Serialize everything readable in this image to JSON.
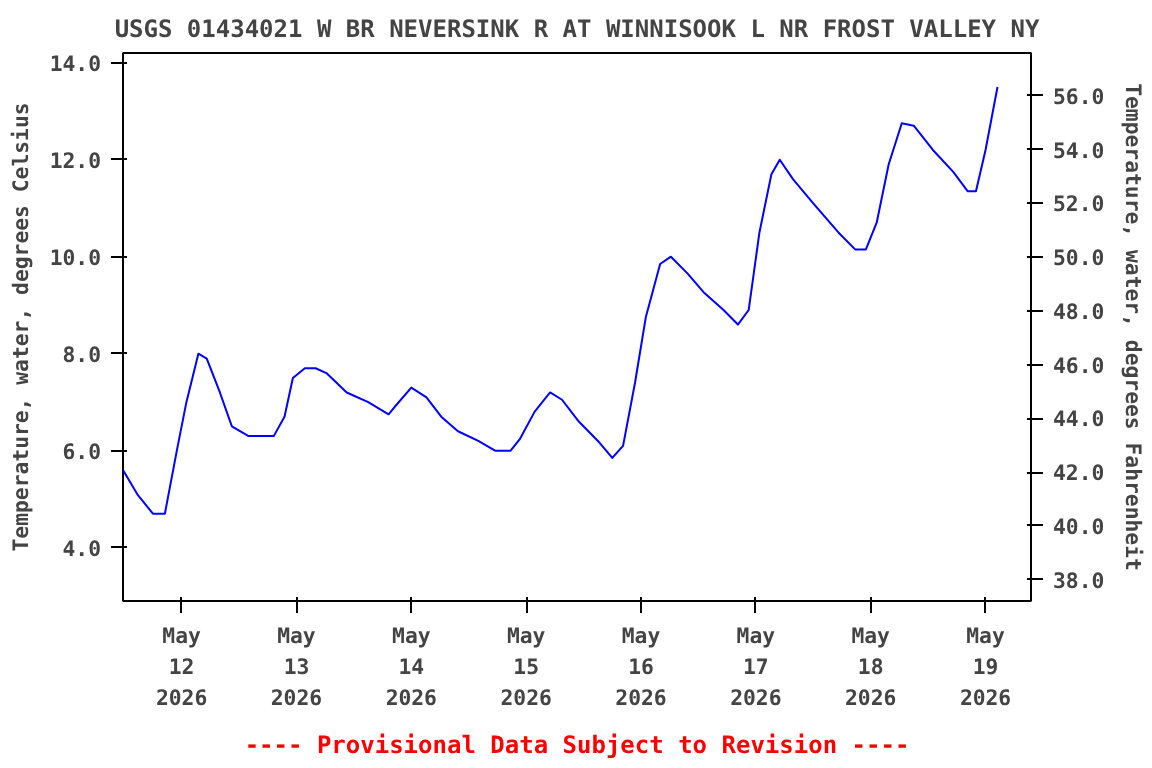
{
  "chart_data": {
    "type": "line",
    "title": "USGS 01434021 W BR NEVERSINK R AT WINNISOOK L NR FROST VALLEY NY",
    "ylabel": "Temperature, water, degrees Celsius",
    "y2label": "Temperature, water, degrees Fahrenheit",
    "annotations": [
      "---- Provisional Data Subject to Revision ----"
    ],
    "x": [
      "2026-05-11T11:45",
      "2026-05-11T14:45",
      "2026-05-11T18:00",
      "2026-05-11T20:30",
      "2026-05-11T23:00",
      "2026-05-12T01:00",
      "2026-05-12T03:30",
      "2026-05-12T05:15",
      "2026-05-12T08:00",
      "2026-05-12T10:30",
      "2026-05-12T14:00",
      "2026-05-12T19:15",
      "2026-05-12T21:30",
      "2026-05-12T23:15",
      "2026-05-13T01:45",
      "2026-05-13T04:00",
      "2026-05-13T06:15",
      "2026-05-13T10:30",
      "2026-05-13T15:00",
      "2026-05-13T19:15",
      "2026-05-13T20:30",
      "2026-05-14T00:00",
      "2026-05-14T03:10",
      "2026-05-14T06:15",
      "2026-05-14T09:45",
      "2026-05-14T14:00",
      "2026-05-14T17:30",
      "2026-05-14T20:45",
      "2026-05-14T22:45",
      "2026-05-15T01:45",
      "2026-05-15T05:00",
      "2026-05-15T07:30",
      "2026-05-15T11:00",
      "2026-05-15T15:00",
      "2026-05-15T18:00",
      "2026-05-15T20:15",
      "2026-05-15T22:45",
      "2026-05-16T01:00",
      "2026-05-16T04:00",
      "2026-05-16T06:15",
      "2026-05-16T09:45",
      "2026-05-16T13:15",
      "2026-05-16T17:15",
      "2026-05-16T20:15",
      "2026-05-16T22:30",
      "2026-05-17T00:45",
      "2026-05-17T03:15",
      "2026-05-17T05:00",
      "2026-05-17T07:45",
      "2026-05-17T12:00",
      "2026-05-17T17:15",
      "2026-05-17T20:45",
      "2026-05-17T23:00",
      "2026-05-18T01:15",
      "2026-05-18T03:45",
      "2026-05-18T06:30",
      "2026-05-18T09:00",
      "2026-05-18T13:00",
      "2026-05-18T17:15",
      "2026-05-18T20:15",
      "2026-05-18T22:00",
      "2026-05-19T00:00",
      "2026-05-19T02:30"
    ],
    "series": [
      {
        "color": "#0000ff",
        "values": [
          5.6,
          5.1,
          4.7,
          4.7,
          6.0,
          7.0,
          8.0,
          7.9,
          7.2,
          6.5,
          6.3,
          6.3,
          6.7,
          7.5,
          7.7,
          7.7,
          7.6,
          7.2,
          7.0,
          6.75,
          6.9,
          7.3,
          7.1,
          6.7,
          6.4,
          6.2,
          6.0,
          6.0,
          6.25,
          6.8,
          7.2,
          7.05,
          6.6,
          6.2,
          5.85,
          6.1,
          7.4,
          8.75,
          9.85,
          10.0,
          9.65,
          9.25,
          8.9,
          8.6,
          8.9,
          10.5,
          11.7,
          12.0,
          11.6,
          11.1,
          10.5,
          10.15,
          10.15,
          10.7,
          11.9,
          12.75,
          12.7,
          12.2,
          11.75,
          11.35,
          11.35,
          12.2,
          13.5
        ]
      }
    ],
    "xlim": [
      "2026-05-11T11:45",
      "2026-05-19T09:30"
    ],
    "ylim": [
      2.9,
      14.2
    ],
    "y2lim": [
      37.2,
      57.6
    ],
    "xticks": [
      {
        "value": "2026-05-12",
        "label": "May\n12\n2026"
      },
      {
        "value": "2026-05-13",
        "label": "May\n13\n2026"
      },
      {
        "value": "2026-05-14",
        "label": "May\n14\n2026"
      },
      {
        "value": "2026-05-15",
        "label": "May\n15\n2026"
      },
      {
        "value": "2026-05-16",
        "label": "May\n16\n2026"
      },
      {
        "value": "2026-05-17",
        "label": "May\n17\n2026"
      },
      {
        "value": "2026-05-18",
        "label": "May\n18\n2026"
      },
      {
        "value": "2026-05-19",
        "label": "May\n19\n2026"
      }
    ],
    "yticks": [
      {
        "value": 4,
        "label": "4.0"
      },
      {
        "value": 6,
        "label": "6.0"
      },
      {
        "value": 8,
        "label": "8.0"
      },
      {
        "value": 10,
        "label": "10.0"
      },
      {
        "value": 12,
        "label": "12.0"
      },
      {
        "value": 14,
        "label": "14.0"
      }
    ],
    "y2ticks": [
      {
        "value": 38,
        "label": "38.0"
      },
      {
        "value": 40,
        "label": "40.0"
      },
      {
        "value": 42,
        "label": "42.0"
      },
      {
        "value": 44,
        "label": "44.0"
      },
      {
        "value": 46,
        "label": "46.0"
      },
      {
        "value": 48,
        "label": "48.0"
      },
      {
        "value": 50,
        "label": "50.0"
      },
      {
        "value": 52,
        "label": "52.0"
      },
      {
        "value": 54,
        "label": "54.0"
      },
      {
        "value": 56,
        "label": "56.0"
      }
    ],
    "grid": false
  }
}
